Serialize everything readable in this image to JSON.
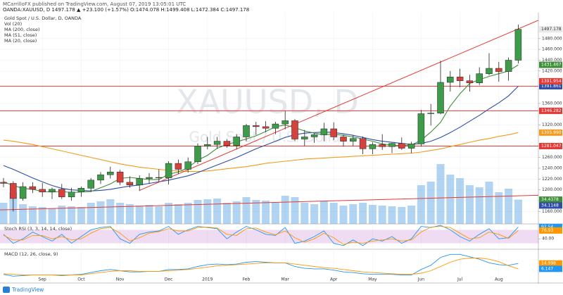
{
  "header": {
    "published": "MCarrilloFX published on TradingView.com, August 07, 2019 13:05:01 UTC",
    "quote": "OANDA:XAUUSD, D  1497.178 ▲ +23.100 (+1.57%) O:1474.078 H:1499.408 L:1472.384 C:1497.178"
  },
  "footer": "TradingView",
  "chart_data": {
    "type": "candlestick",
    "title": "Gold Spot / U.S. Dollar, D, OANDA",
    "watermark": "XAUUSD, D",
    "watermark_sub": "Gold Spot / U.S. Dollar",
    "categories": [
      null,
      null,
      null,
      null,
      "Sep",
      null,
      null,
      null,
      "Oct",
      null,
      null,
      null,
      "Nov",
      null,
      null,
      null,
      null,
      "Dec",
      null,
      null,
      null,
      "2019",
      null,
      null,
      null,
      "Feb",
      null,
      null,
      null,
      "Mar",
      null,
      null,
      null,
      null,
      "Apr",
      null,
      null,
      null,
      "May",
      null,
      null,
      null,
      null,
      "Jun",
      null,
      null,
      null,
      "Jul",
      null,
      null,
      null,
      "Aug",
      null,
      null
    ],
    "open": [
      1214,
      1212,
      1184,
      1206,
      1201,
      1196,
      1201,
      1187,
      1196,
      1203,
      1218,
      1228,
      1233,
      1214,
      1209,
      1221,
      1223,
      1222,
      1249,
      1238,
      1252,
      1281,
      1284,
      1290,
      1282,
      1298,
      1319,
      1317,
      1314,
      1322,
      1328,
      1294,
      1298,
      1302,
      1313,
      1298,
      1290,
      1295,
      1276,
      1284,
      1280,
      1286,
      1277,
      1285,
      1341,
      1342,
      1399,
      1409,
      1402,
      1398,
      1415,
      1425,
      1419,
      1440
    ],
    "high": [
      1222,
      1216,
      1214,
      1214,
      1213,
      1204,
      1211,
      1204,
      1206,
      1222,
      1233,
      1243,
      1237,
      1225,
      1227,
      1231,
      1238,
      1253,
      1256,
      1260,
      1286,
      1298,
      1298,
      1294,
      1303,
      1322,
      1326,
      1327,
      1326,
      1346,
      1331,
      1311,
      1305,
      1324,
      1325,
      1302,
      1301,
      1299,
      1288,
      1303,
      1287,
      1297,
      1289,
      1348,
      1359,
      1439,
      1420,
      1424,
      1413,
      1427,
      1453,
      1437,
      1445,
      1506
    ],
    "low": [
      1205,
      1160,
      1180,
      1194,
      1187,
      1183,
      1183,
      1180,
      1187,
      1196,
      1211,
      1221,
      1209,
      1204,
      1198,
      1211,
      1214,
      1210,
      1229,
      1232,
      1248,
      1275,
      1276,
      1278,
      1275,
      1290,
      1302,
      1307,
      1303,
      1312,
      1290,
      1281,
      1287,
      1290,
      1292,
      1280,
      1281,
      1266,
      1266,
      1274,
      1268,
      1274,
      1268,
      1280,
      1319,
      1340,
      1382,
      1390,
      1382,
      1394,
      1412,
      1400,
      1402,
      1434
    ],
    "close": [
      1212,
      1184,
      1206,
      1201,
      1196,
      1201,
      1187,
      1196,
      1203,
      1218,
      1228,
      1233,
      1214,
      1209,
      1221,
      1223,
      1222,
      1249,
      1238,
      1252,
      1281,
      1284,
      1290,
      1282,
      1298,
      1319,
      1317,
      1314,
      1322,
      1328,
      1294,
      1298,
      1302,
      1313,
      1298,
      1290,
      1295,
      1276,
      1284,
      1280,
      1286,
      1277,
      1285,
      1341,
      1342,
      1399,
      1409,
      1402,
      1398,
      1415,
      1425,
      1419,
      1440,
      1497.178
    ],
    "up_color": "#3d9b4a",
    "down_color": "#d8413b",
    "ylim": [
      1137,
      1528
    ],
    "yticks": [
      {
        "value": 1160,
        "label": "1160.000"
      },
      {
        "value": 1180,
        "label": "1180.000"
      },
      {
        "value": 1200,
        "label": "1200.000"
      },
      {
        "value": 1220,
        "label": "1220.000"
      },
      {
        "value": 1240,
        "label": "1240.000"
      },
      {
        "value": 1260,
        "label": "1260.000"
      },
      {
        "value": 1320,
        "label": "1320.000"
      },
      {
        "value": 1360,
        "label": "1360.000"
      },
      {
        "value": 1420,
        "label": "1420.000"
      },
      {
        "value": 1440,
        "label": "1440.000"
      },
      {
        "value": 1460,
        "label": "1460.000"
      },
      {
        "value": 1480,
        "label": "1480.000"
      }
    ],
    "grid": true,
    "series": [
      {
        "name": "MA (200, close)",
        "color": "#f29b1d",
        "end_label": "1305.990",
        "values": [
          1292,
          1290,
          1287,
          1284,
          1280,
          1276,
          1272,
          1268,
          1264,
          1260,
          1256,
          1252,
          1248,
          1245,
          1242,
          1240,
          1238,
          1236,
          1235,
          1234,
          1234,
          1235,
          1237,
          1239,
          1241,
          1243,
          1246,
          1249,
          1251,
          1253,
          1255,
          1257,
          1258,
          1259,
          1260,
          1261,
          1262,
          1263,
          1264,
          1265,
          1266,
          1267,
          1268,
          1270,
          1273,
          1276,
          1280,
          1284,
          1288,
          1292,
          1295,
          1299,
          1302,
          1305.99
        ]
      },
      {
        "name": "MA (51, close)",
        "color": "#2f4da8",
        "end_label": "1391.861",
        "values": [
          1245,
          1238,
          1230,
          1222,
          1215,
          1208,
          1203,
          1200,
          1199,
          1198,
          1199,
          1201,
          1204,
          1207,
          1209,
          1212,
          1215,
          1218,
          1222,
          1226,
          1232,
          1239,
          1246,
          1253,
          1260,
          1268,
          1276,
          1283,
          1290,
          1297,
          1302,
          1305,
          1306,
          1307,
          1306,
          1304,
          1301,
          1297,
          1293,
          1290,
          1288,
          1286,
          1284,
          1286,
          1290,
          1297,
          1306,
          1316,
          1327,
          1338,
          1350,
          1361,
          1374,
          1391.861
        ]
      },
      {
        "name": "MA (20, close)",
        "color": "#3f8f3a",
        "end_label": "1431.467",
        "values": [
          1215,
          1208,
          1203,
          1201,
          1197,
          1196,
          1197,
          1195,
          1196,
          1197,
          1204,
          1211,
          1221,
          1223,
          1221,
          1219,
          1219,
          1229,
          1233,
          1241,
          1255,
          1264,
          1277,
          1284,
          1289,
          1294,
          1300,
          1308,
          1317,
          1320,
          1315,
          1309,
          1305,
          1302,
          1303,
          1301,
          1298,
          1294,
          1290,
          1285,
          1283,
          1282,
          1283,
          1292,
          1307,
          1325,
          1355,
          1378,
          1397,
          1404,
          1410,
          1415,
          1420,
          1431.467
        ]
      }
    ],
    "hlines": [
      {
        "value": 1391.954,
        "label": "1391.954"
      },
      {
        "value": 1346.282,
        "label": "1346.282"
      },
      {
        "value": 1281.047,
        "label": "1281.047"
      }
    ],
    "hline_color": "#e53935",
    "trendlines": [
      {
        "start_index": 14,
        "start": 1199,
        "end_index": 53,
        "end": 1498
      },
      {
        "start_index": 0,
        "start": 1163,
        "end_index": 53,
        "end": 1189
      }
    ],
    "volume": {
      "name": "Vol (20)",
      "color": "#6fb0e6",
      "ylim": [
        0,
        100
      ],
      "ma_last": 34.1148,
      "values": [
        30,
        45,
        28,
        25,
        24,
        22,
        26,
        25,
        24,
        30,
        32,
        35,
        30,
        28,
        26,
        27,
        25,
        30,
        28,
        30,
        34,
        35,
        36,
        30,
        32,
        38,
        34,
        33,
        30,
        40,
        38,
        30,
        28,
        32,
        30,
        26,
        28,
        30,
        27,
        26,
        25,
        24,
        26,
        55,
        60,
        85,
        70,
        65,
        55,
        52,
        60,
        45,
        50,
        34.4378
      ]
    },
    "stoch": {
      "name": "Stoch RSI (3, 3, 14, 14, close)",
      "ylim": [
        0,
        100
      ],
      "band": [
        20,
        80
      ],
      "yticks": [
        {
          "value": 40,
          "label": "40.00"
        }
      ],
      "k": {
        "color": "#2196f3",
        "values": [
          60,
          20,
          40,
          70,
          50,
          30,
          60,
          20,
          50,
          80,
          90,
          95,
          40,
          20,
          60,
          70,
          75,
          95,
          60,
          80,
          95,
          90,
          85,
          40,
          70,
          95,
          80,
          60,
          55,
          90,
          20,
          30,
          50,
          75,
          20,
          10,
          35,
          10,
          40,
          30,
          50,
          20,
          40,
          95,
          90,
          100,
          80,
          50,
          30,
          60,
          85,
          40,
          45,
          92.54
        ]
      },
      "d": {
        "color": "#ff9800",
        "values": [
          55,
          35,
          35,
          55,
          55,
          40,
          50,
          35,
          40,
          65,
          85,
          90,
          65,
          30,
          45,
          65,
          72,
          85,
          75,
          75,
          90,
          92,
          88,
          60,
          55,
          85,
          88,
          70,
          58,
          75,
          45,
          25,
          40,
          65,
          45,
          15,
          25,
          20,
          30,
          35,
          40,
          30,
          35,
          70,
          92,
          95,
          90,
          65,
          40,
          45,
          70,
          60,
          42,
          76.93
        ]
      }
    },
    "macd": {
      "name": "MACD (12, 26, close, 9)",
      "ylim": [
        -15,
        35
      ],
      "macd": {
        "color": "#2196f3",
        "values": [
          -3,
          -6,
          -5,
          -4,
          -4,
          -4,
          -5,
          -4,
          -3,
          0,
          3,
          5,
          3,
          1,
          1,
          2,
          2,
          5,
          5,
          6,
          10,
          13,
          14,
          13,
          14,
          17,
          18,
          17,
          16,
          16,
          10,
          7,
          6,
          6,
          4,
          1,
          0,
          -2,
          -3,
          -3,
          -3,
          -4,
          -4,
          5,
          12,
          25,
          30,
          30,
          26,
          22,
          16,
          13,
          12,
          14.998
        ]
      },
      "signal": {
        "color": "#ff9800",
        "values": [
          -2,
          -3,
          -4,
          -4,
          -4,
          -4,
          -4,
          -4,
          -4,
          -2,
          0,
          2,
          3,
          3,
          2,
          2,
          2,
          3,
          4,
          5,
          7,
          9,
          11,
          12,
          13,
          14,
          15,
          16,
          16,
          16,
          14,
          12,
          10,
          8,
          7,
          5,
          3,
          1,
          0,
          -1,
          -2,
          -3,
          -3,
          -1,
          3,
          10,
          17,
          22,
          24,
          24,
          22,
          18,
          11,
          6.147
        ]
      }
    }
  }
}
